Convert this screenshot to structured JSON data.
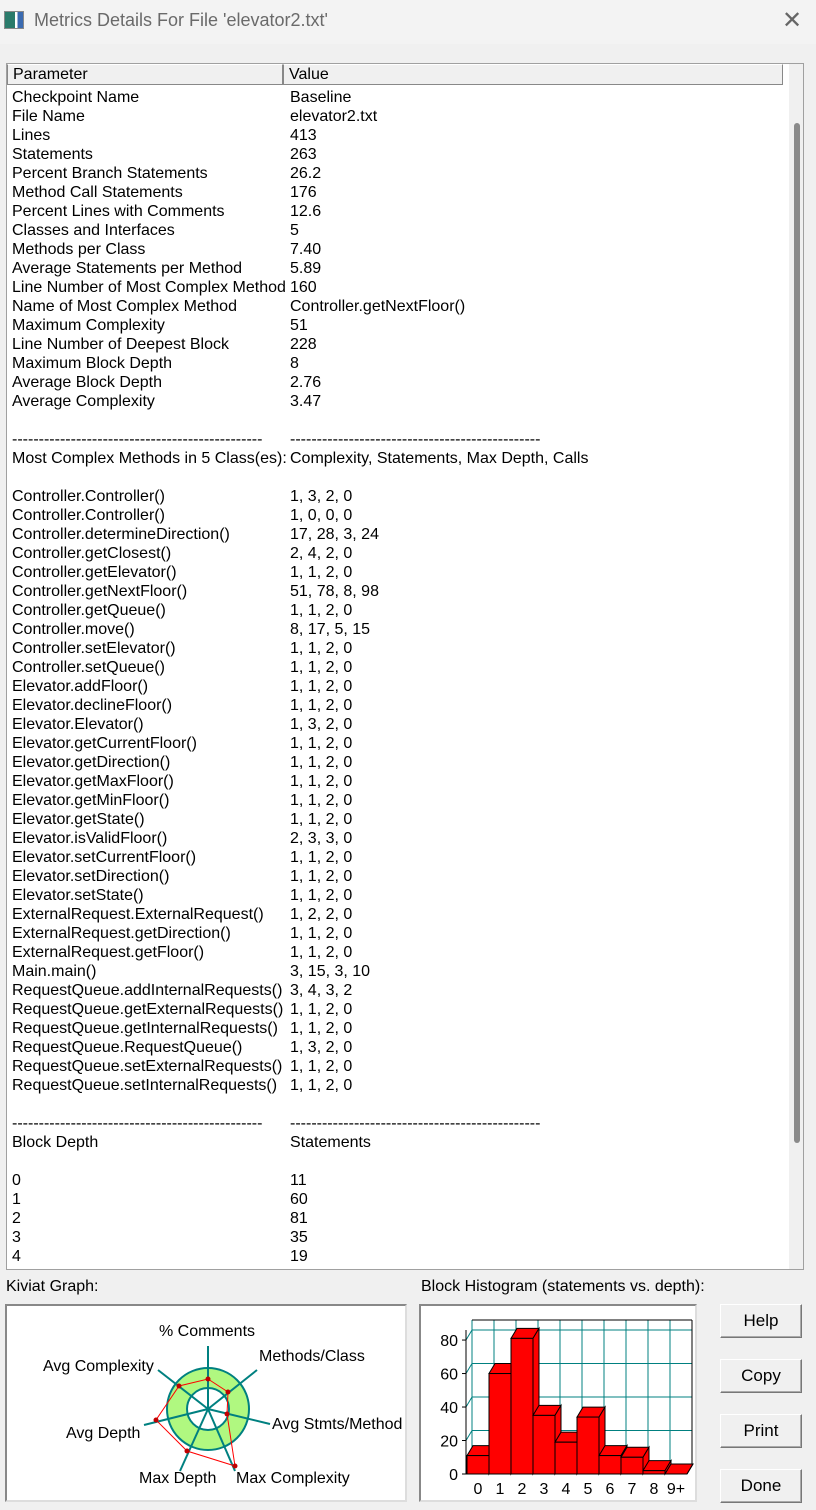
{
  "window": {
    "title": "Metrics Details For File 'elevator2.txt'",
    "close_icon": "close-icon"
  },
  "table": {
    "headers": [
      "Parameter",
      "Value"
    ],
    "rows": [
      [
        "Checkpoint Name",
        "Baseline"
      ],
      [
        "File Name",
        "elevator2.txt"
      ],
      [
        "Lines",
        "413"
      ],
      [
        "Statements",
        "263"
      ],
      [
        "Percent Branch Statements",
        "26.2"
      ],
      [
        "Method Call Statements",
        "176"
      ],
      [
        "Percent Lines with Comments",
        "12.6"
      ],
      [
        "Classes and Interfaces",
        "5"
      ],
      [
        "Methods per Class",
        "7.40"
      ],
      [
        "Average Statements per Method",
        "5.89"
      ],
      [
        "Line Number of Most Complex Method",
        "160"
      ],
      [
        "Name of Most Complex Method",
        "Controller.getNextFloor()"
      ],
      [
        "Maximum Complexity",
        "51"
      ],
      [
        "Line Number of Deepest Block",
        "228"
      ],
      [
        "Maximum Block Depth",
        "8"
      ],
      [
        "Average Block Depth",
        "2.76"
      ],
      [
        "Average Complexity",
        "3.47"
      ],
      [
        "",
        ""
      ],
      [
        "-----------------------------------------------",
        "-----------------------------------------------"
      ],
      [
        "Most Complex Methods in 5 Class(es):",
        "Complexity, Statements, Max Depth, Calls"
      ],
      [
        "",
        ""
      ],
      [
        "Controller.Controller()",
        "1, 3, 2, 0"
      ],
      [
        "Controller.Controller()",
        "1, 0, 0, 0"
      ],
      [
        "Controller.determineDirection()",
        "17, 28, 3, 24"
      ],
      [
        "Controller.getClosest()",
        "2, 4, 2, 0"
      ],
      [
        "Controller.getElevator()",
        "1, 1, 2, 0"
      ],
      [
        "Controller.getNextFloor()",
        "51, 78, 8, 98"
      ],
      [
        "Controller.getQueue()",
        "1, 1, 2, 0"
      ],
      [
        "Controller.move()",
        "8, 17, 5, 15"
      ],
      [
        "Controller.setElevator()",
        "1, 1, 2, 0"
      ],
      [
        "Controller.setQueue()",
        "1, 1, 2, 0"
      ],
      [
        "Elevator.addFloor()",
        "1, 1, 2, 0"
      ],
      [
        "Elevator.declineFloor()",
        "1, 1, 2, 0"
      ],
      [
        "Elevator.Elevator()",
        "1, 3, 2, 0"
      ],
      [
        "Elevator.getCurrentFloor()",
        "1, 1, 2, 0"
      ],
      [
        "Elevator.getDirection()",
        "1, 1, 2, 0"
      ],
      [
        "Elevator.getMaxFloor()",
        "1, 1, 2, 0"
      ],
      [
        "Elevator.getMinFloor()",
        "1, 1, 2, 0"
      ],
      [
        "Elevator.getState()",
        "1, 1, 2, 0"
      ],
      [
        "Elevator.isValidFloor()",
        "2, 3, 3, 0"
      ],
      [
        "Elevator.setCurrentFloor()",
        "1, 1, 2, 0"
      ],
      [
        "Elevator.setDirection()",
        "1, 1, 2, 0"
      ],
      [
        "Elevator.setState()",
        "1, 1, 2, 0"
      ],
      [
        "ExternalRequest.ExternalRequest()",
        "1, 2, 2, 0"
      ],
      [
        "ExternalRequest.getDirection()",
        "1, 1, 2, 0"
      ],
      [
        "ExternalRequest.getFloor()",
        "1, 1, 2, 0"
      ],
      [
        "Main.main()",
        "3, 15, 3, 10"
      ],
      [
        "RequestQueue.addInternalRequests()",
        "3, 4, 3, 2"
      ],
      [
        "RequestQueue.getExternalRequests()",
        "1, 1, 2, 0"
      ],
      [
        "RequestQueue.getInternalRequests()",
        "1, 1, 2, 0"
      ],
      [
        "RequestQueue.RequestQueue()",
        "1, 3, 2, 0"
      ],
      [
        "RequestQueue.setExternalRequests()",
        "1, 1, 2, 0"
      ],
      [
        "RequestQueue.setInternalRequests()",
        "1, 1, 2, 0"
      ],
      [
        "",
        ""
      ],
      [
        "-----------------------------------------------",
        "-----------------------------------------------"
      ],
      [
        "Block Depth",
        "Statements"
      ],
      [
        "",
        ""
      ],
      [
        "0",
        "11"
      ],
      [
        "1",
        "60"
      ],
      [
        "2",
        "81"
      ],
      [
        "3",
        "35"
      ],
      [
        "4",
        "19"
      ]
    ]
  },
  "kiviat": {
    "label": "Kiviat Graph:",
    "axes": [
      "% Comments",
      "Methods/Class",
      "Avg Stmts/Method",
      "Max Complexity",
      "Max Depth",
      "Avg Depth",
      "Avg Complexity"
    ],
    "ring_color": "#b0f880",
    "axis_color": "#008080",
    "line_color": "#ff0000"
  },
  "chart_data": {
    "type": "bar",
    "title": "Block Histogram (statements vs. depth):",
    "categories": [
      "0",
      "1",
      "2",
      "3",
      "4",
      "5",
      "6",
      "7",
      "8",
      "9+"
    ],
    "values": [
      11,
      60,
      81,
      35,
      19,
      34,
      11,
      10,
      2,
      0
    ],
    "yticks": [
      "0",
      "20",
      "40",
      "60",
      "80"
    ],
    "ylim": [
      0,
      86
    ],
    "grid": true,
    "bar_color": "#ff0000",
    "grid_color": "#008080"
  },
  "buttons": {
    "help": "Help",
    "copy": "Copy",
    "print": "Print",
    "done": "Done"
  }
}
